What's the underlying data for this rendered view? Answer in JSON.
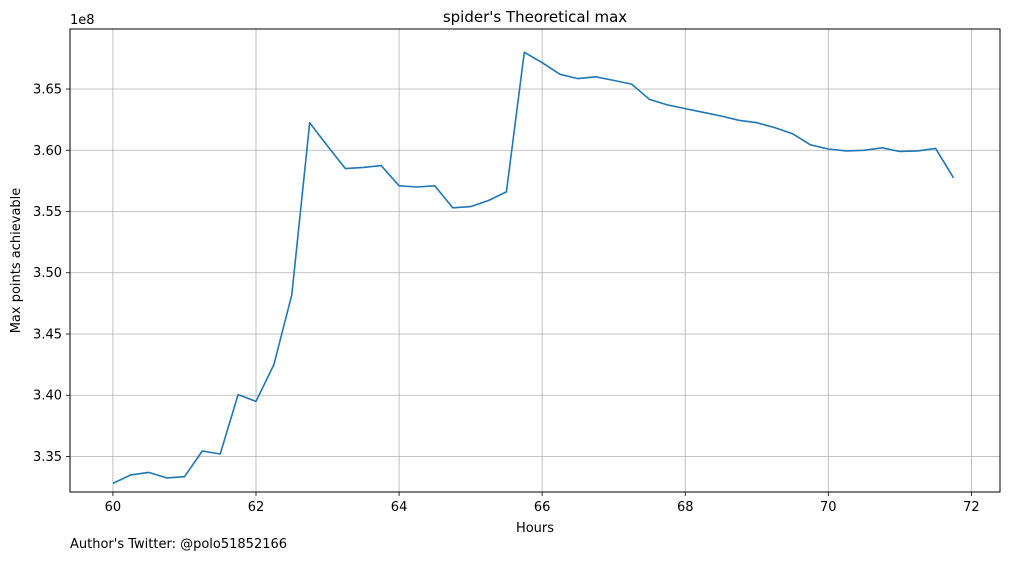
{
  "chart_data": {
    "type": "line",
    "title": "spider's Theoretical max",
    "xlabel": "Hours",
    "ylabel": "Max points achievable",
    "y_scale_label": "1e8",
    "xlim": [
      59.4,
      72.4
    ],
    "ylim": [
      332.1,
      369.9
    ],
    "y_unit_multiplier": 1000000,
    "x_ticks": [
      60,
      62,
      64,
      66,
      68,
      70,
      72
    ],
    "y_ticks": [
      335,
      340,
      345,
      350,
      355,
      360,
      365
    ],
    "x_tick_labels": [
      "60",
      "62",
      "64",
      "66",
      "68",
      "70",
      "72"
    ],
    "y_tick_labels": [
      "3.35",
      "3.40",
      "3.45",
      "3.50",
      "3.55",
      "3.60",
      "3.65"
    ],
    "grid": true,
    "line_color": "#1f77b4",
    "series": [
      {
        "x": [
          60.0,
          60.25,
          60.5,
          60.75,
          61.0,
          61.25,
          61.5,
          61.75,
          62.0,
          62.25,
          62.5,
          62.75,
          63.0,
          63.25,
          63.5,
          63.75,
          64.0,
          64.25,
          64.5,
          64.75,
          65.0,
          65.25,
          65.5,
          65.75,
          66.0,
          66.25,
          66.5,
          66.75,
          67.0,
          67.25,
          67.5,
          67.75,
          68.0,
          68.25,
          68.5,
          68.75,
          69.0,
          69.25,
          69.5,
          69.75,
          70.0,
          70.25,
          70.5,
          70.75,
          71.0,
          71.25,
          71.5,
          71.75
        ],
        "y": [
          332.8,
          333.5,
          333.7,
          333.25,
          333.35,
          335.45,
          335.2,
          340.05,
          339.5,
          342.5,
          348.2,
          362.25,
          360.35,
          358.5,
          358.6,
          358.75,
          357.1,
          357.0,
          357.1,
          355.3,
          355.4,
          355.9,
          356.6,
          368.0,
          367.15,
          366.2,
          365.85,
          366.0,
          365.7,
          365.4,
          364.15,
          363.7,
          363.4,
          363.1,
          362.8,
          362.45,
          362.25,
          361.85,
          361.35,
          360.45,
          360.1,
          359.95,
          360.0,
          360.2,
          359.9,
          359.95,
          360.15,
          357.75
        ]
      }
    ]
  },
  "footer": "Author's Twitter: @polo51852166"
}
